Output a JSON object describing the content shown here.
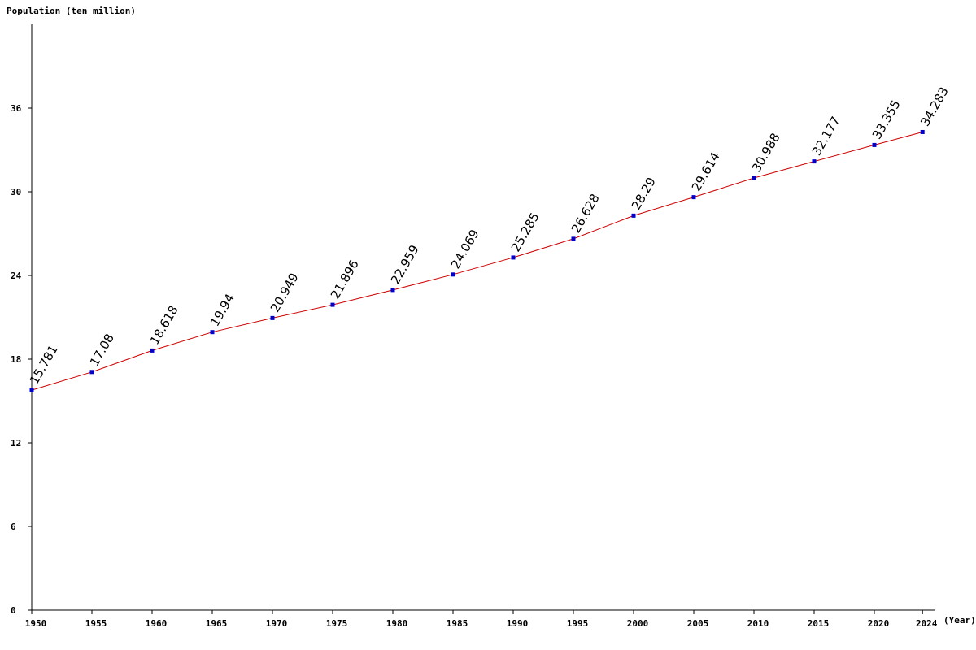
{
  "chart_data": {
    "type": "line",
    "y_label": "Population (ten million)",
    "x_label": "(Year)",
    "x": [
      1950,
      1955,
      1960,
      1965,
      1970,
      1975,
      1980,
      1985,
      1990,
      1995,
      2000,
      2005,
      2010,
      2015,
      2020,
      2024
    ],
    "series": [
      {
        "name": "Population",
        "line_color": "#cc0000",
        "marker_color": "#0000cc",
        "values": [
          15.781,
          17.08,
          18.618,
          19.94,
          20.949,
          21.896,
          22.959,
          24.069,
          25.285,
          26.628,
          28.29,
          29.614,
          30.988,
          32.177,
          33.355,
          34.283
        ]
      }
    ],
    "xlim": [
      1950,
      2025
    ],
    "xticks": [
      1950,
      1955,
      1960,
      1965,
      1970,
      1975,
      1980,
      1985,
      1990,
      1995,
      2000,
      2005,
      2010,
      2015,
      2020,
      2024
    ],
    "ylim": [
      0,
      42
    ],
    "yticks": [
      0,
      6,
      12,
      18,
      24,
      30,
      36
    ]
  }
}
